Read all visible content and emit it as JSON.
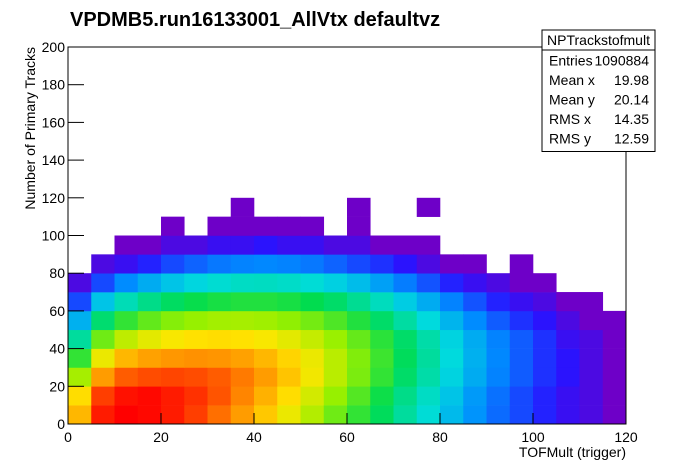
{
  "chart_data": {
    "type": "heatmap",
    "title": "VPDMB5.run16133001_AllVtx defaultvz",
    "x_label": "TOFMult (trigger)",
    "y_label": "Number of Primary Tracks",
    "xlim": [
      0,
      120
    ],
    "ylim": [
      0,
      200
    ],
    "xticks": [
      0,
      20,
      40,
      60,
      80,
      100,
      120
    ],
    "yticks": [
      0,
      20,
      40,
      60,
      80,
      100,
      120,
      140,
      160,
      180,
      200
    ],
    "zlog": true,
    "xbins": [
      0,
      5,
      10,
      15,
      20,
      25,
      30,
      35,
      40,
      45,
      50,
      55,
      60,
      65,
      70,
      75,
      80,
      85,
      90,
      95,
      100,
      105,
      110,
      115,
      120
    ],
    "ybins": [
      0,
      10,
      20,
      30,
      40,
      50,
      60,
      70,
      80,
      90,
      100,
      110,
      120
    ],
    "z": [
      [
        3000,
        12000,
        15000,
        14000,
        12000,
        9000,
        6000,
        4000,
        2500,
        1500,
        900,
        500,
        300,
        180,
        100,
        60,
        35,
        20,
        12,
        8,
        5,
        3,
        2,
        1
      ],
      [
        2000,
        9000,
        13000,
        14000,
        12000,
        10000,
        7500,
        5000,
        3200,
        2000,
        1200,
        700,
        400,
        220,
        120,
        70,
        40,
        22,
        13,
        8,
        5,
        3,
        2,
        1
      ],
      [
        800,
        4000,
        7000,
        8000,
        8500,
        8000,
        7000,
        5500,
        4000,
        2600,
        1600,
        950,
        550,
        300,
        160,
        90,
        50,
        28,
        16,
        10,
        6,
        4,
        2,
        1
      ],
      [
        300,
        1500,
        3000,
        3800,
        4200,
        4500,
        4300,
        3800,
        3000,
        2200,
        1500,
        950,
        580,
        330,
        180,
        100,
        55,
        30,
        17,
        10,
        6,
        4,
        2,
        1
      ],
      [
        100,
        500,
        1000,
        1400,
        1700,
        1900,
        2000,
        1900,
        1700,
        1400,
        1050,
        720,
        460,
        280,
        160,
        90,
        50,
        28,
        16,
        10,
        6,
        3,
        2,
        1
      ],
      [
        30,
        150,
        300,
        450,
        600,
        700,
        780,
        800,
        760,
        660,
        520,
        380,
        260,
        160,
        95,
        55,
        32,
        18,
        10,
        6,
        4,
        2,
        1,
        1
      ],
      [
        8,
        40,
        80,
        120,
        170,
        210,
        240,
        260,
        260,
        240,
        200,
        160,
        110,
        75,
        45,
        28,
        16,
        9,
        5,
        3,
        2,
        1,
        1,
        0
      ],
      [
        2,
        8,
        18,
        28,
        40,
        52,
        62,
        70,
        72,
        68,
        60,
        48,
        36,
        24,
        15,
        9,
        5,
        3,
        2,
        1,
        1,
        0,
        0,
        0
      ],
      [
        0,
        2,
        3,
        5,
        8,
        11,
        14,
        16,
        17,
        16,
        14,
        11,
        8,
        6,
        4,
        2,
        1,
        1,
        0,
        1,
        0,
        0,
        0,
        0
      ],
      [
        0,
        0,
        1,
        1,
        2,
        2,
        3,
        3,
        4,
        3,
        3,
        2,
        2,
        1,
        1,
        1,
        0,
        0,
        0,
        0,
        0,
        0,
        0,
        0
      ],
      [
        0,
        0,
        0,
        0,
        1,
        0,
        1,
        1,
        1,
        1,
        1,
        0,
        1,
        0,
        0,
        0,
        0,
        0,
        0,
        0,
        0,
        0,
        0,
        0
      ],
      [
        0,
        0,
        0,
        0,
        0,
        0,
        0,
        1,
        0,
        0,
        0,
        0,
        1,
        0,
        0,
        1,
        0,
        0,
        0,
        0,
        0,
        0,
        0,
        0
      ]
    ],
    "stats": {
      "title": "NPTrackstofmult",
      "rows": [
        [
          "Entries",
          1090884
        ],
        [
          "Mean x",
          19.98
        ],
        [
          "Mean y",
          20.14
        ],
        [
          "RMS x",
          14.35
        ],
        [
          "RMS y",
          12.59
        ]
      ]
    }
  }
}
